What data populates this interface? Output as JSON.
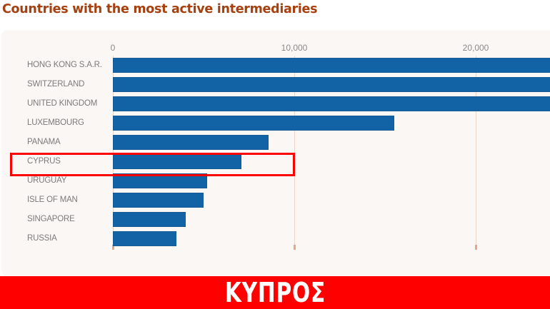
{
  "title": "Countries with the most active intermediaries",
  "colors": {
    "title": "#a6400f",
    "bar": "#1262a6",
    "panel_bg": "#fbf7f4",
    "gridline": "#ecd6c8",
    "highlight": "#ff0000",
    "banner_bg": "#ff0000",
    "banner_text": "#ffffff"
  },
  "axis": {
    "ticks": [
      {
        "label": "0",
        "value": 0
      },
      {
        "label": "10,000",
        "value": 10000
      },
      {
        "label": "20,000",
        "value": 20000
      }
    ]
  },
  "highlight": {
    "label": "CYPRUS"
  },
  "banner": {
    "text": "ΚΥΠΡΟΣ"
  },
  "chart_data": {
    "type": "bar",
    "orientation": "horizontal",
    "title": "Countries with the most active intermediaries",
    "xlabel": "",
    "ylabel": "",
    "categories": [
      "HONG KONG S.A.R.",
      "SWITZERLAND",
      "UNITED KINGDOM",
      "LUXEMBOURG",
      "PANAMA",
      "CYPRUS",
      "URUGUAY",
      "ISLE OF MAN",
      "SINGAPORE",
      "RUSSIA"
    ],
    "values": [
      25000,
      25000,
      25000,
      15500,
      8600,
      7100,
      5200,
      5000,
      4000,
      3500
    ],
    "notes": "Top three bars extend beyond the visible area (> ~24,400); values shown are lower-bound estimates.",
    "xlim": [
      0,
      24400
    ],
    "xticks": [
      0,
      10000,
      20000
    ],
    "grid": true,
    "legend": null,
    "highlighted_category": "CYPRUS"
  }
}
